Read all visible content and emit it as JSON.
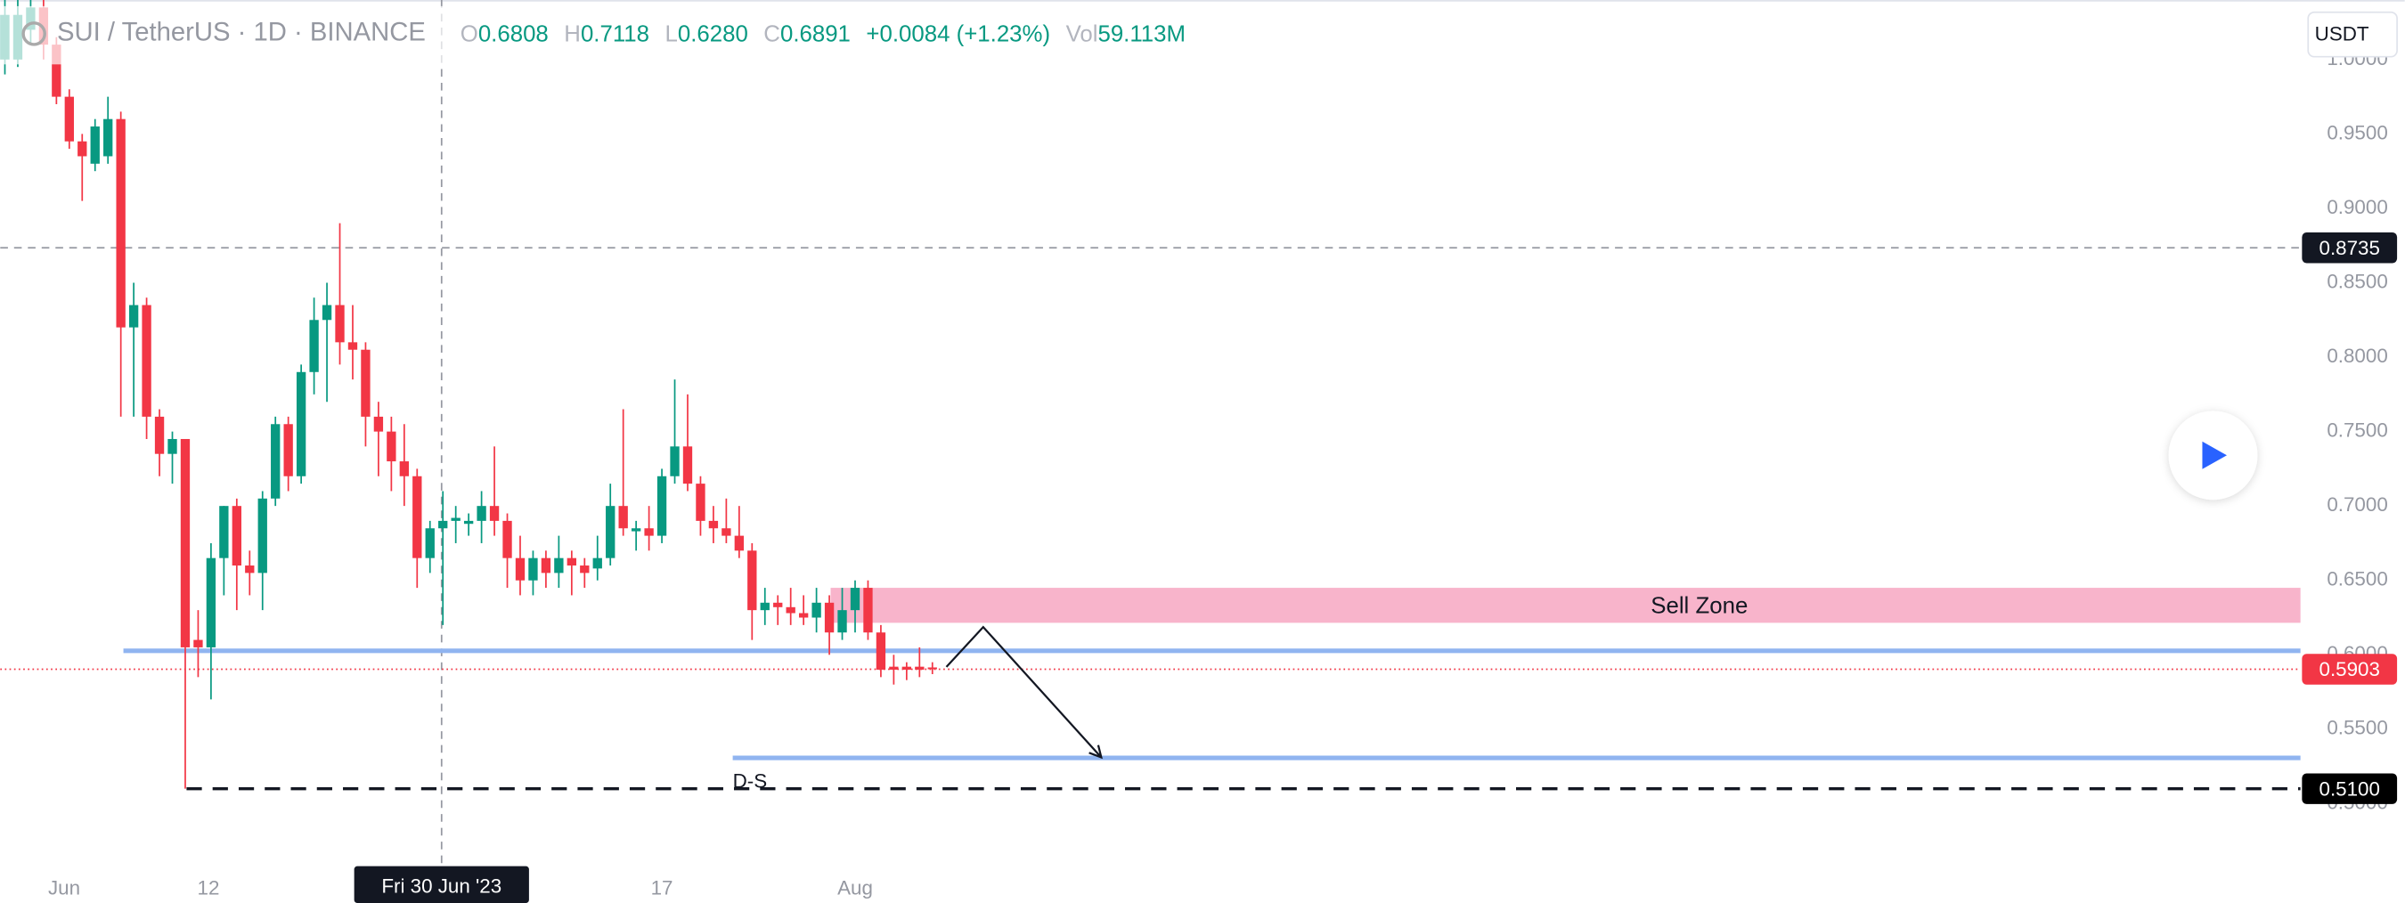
{
  "chart_data": {
    "type": "candlestick",
    "title": "SUI / TetherUS · 1D · BINANCE",
    "ohlc_legend": [
      {
        "label": "O",
        "value": "0.6808"
      },
      {
        "label": "H",
        "value": "0.7118"
      },
      {
        "label": "L",
        "value": "0.6280"
      },
      {
        "label": "C",
        "value": "0.6891"
      }
    ],
    "change": "+0.0084 (+1.23%)",
    "volume_label": "Vol",
    "volume": "59.113M",
    "currency": "USDT",
    "up_color": "#089981",
    "down_color": "#f23645",
    "open": [
      1.0,
      1.0,
      1.02,
      1.035,
      1.01,
      0.975,
      0.945,
      0.93,
      0.935,
      0.96,
      0.82,
      0.835,
      0.76,
      0.735,
      0.745,
      0.61,
      0.605,
      0.665,
      0.7,
      0.66,
      0.655,
      0.705,
      0.755,
      0.72,
      0.79,
      0.825,
      0.835,
      0.81,
      0.805,
      0.76,
      0.75,
      0.73,
      0.72,
      0.665,
      0.685,
      0.69,
      0.688,
      0.69,
      0.7,
      0.69,
      0.665,
      0.65,
      0.665,
      0.655,
      0.665,
      0.66,
      0.658,
      0.665,
      0.7,
      0.683,
      0.685,
      0.68,
      0.72,
      0.74,
      0.715,
      0.69,
      0.685,
      0.68,
      0.67,
      0.63,
      0.635,
      0.632,
      0.628,
      0.625,
      0.635,
      0.615,
      0.63,
      0.645,
      0.615,
      0.592,
      0.592,
      0.592,
      0.5915
    ],
    "high": [
      1.04,
      1.04,
      1.04,
      1.04,
      1.015,
      0.98,
      0.95,
      0.96,
      0.975,
      0.965,
      0.85,
      0.84,
      0.765,
      0.75,
      0.745,
      0.63,
      0.675,
      0.7,
      0.705,
      0.67,
      0.71,
      0.76,
      0.76,
      0.795,
      0.84,
      0.85,
      0.89,
      0.835,
      0.81,
      0.77,
      0.76,
      0.755,
      0.725,
      0.69,
      0.71,
      0.7,
      0.695,
      0.71,
      0.74,
      0.695,
      0.68,
      0.67,
      0.67,
      0.68,
      0.67,
      0.665,
      0.68,
      0.715,
      0.765,
      0.69,
      0.7,
      0.725,
      0.785,
      0.775,
      0.72,
      0.7,
      0.705,
      0.7,
      0.675,
      0.645,
      0.64,
      0.645,
      0.64,
      0.645,
      0.64,
      0.645,
      0.65,
      0.65,
      0.62,
      0.6,
      0.595,
      0.605,
      0.595
    ],
    "low": [
      0.99,
      0.995,
      1.01,
      1.0,
      0.97,
      0.94,
      0.905,
      0.925,
      0.93,
      0.76,
      0.76,
      0.745,
      0.72,
      0.715,
      0.51,
      0.585,
      0.57,
      0.64,
      0.63,
      0.64,
      0.63,
      0.7,
      0.71,
      0.715,
      0.775,
      0.77,
      0.795,
      0.785,
      0.74,
      0.72,
      0.71,
      0.7,
      0.645,
      0.655,
      0.62,
      0.675,
      0.68,
      0.675,
      0.68,
      0.645,
      0.64,
      0.64,
      0.645,
      0.645,
      0.64,
      0.645,
      0.65,
      0.66,
      0.68,
      0.67,
      0.67,
      0.675,
      0.715,
      0.71,
      0.68,
      0.675,
      0.675,
      0.665,
      0.61,
      0.62,
      0.62,
      0.62,
      0.62,
      0.615,
      0.6,
      0.61,
      0.615,
      0.61,
      0.585,
      0.58,
      0.583,
      0.585,
      0.587
    ],
    "close": [
      1.03,
      1.03,
      1.035,
      1.01,
      0.975,
      0.945,
      0.935,
      0.955,
      0.96,
      0.82,
      0.835,
      0.76,
      0.735,
      0.745,
      0.605,
      0.605,
      0.665,
      0.7,
      0.66,
      0.655,
      0.705,
      0.755,
      0.72,
      0.79,
      0.825,
      0.835,
      0.81,
      0.805,
      0.76,
      0.75,
      0.73,
      0.72,
      0.665,
      0.685,
      0.69,
      0.692,
      0.69,
      0.7,
      0.69,
      0.665,
      0.65,
      0.665,
      0.655,
      0.665,
      0.66,
      0.655,
      0.665,
      0.7,
      0.685,
      0.685,
      0.68,
      0.72,
      0.74,
      0.715,
      0.69,
      0.685,
      0.68,
      0.67,
      0.63,
      0.635,
      0.632,
      0.628,
      0.625,
      0.635,
      0.615,
      0.63,
      0.645,
      0.615,
      0.59,
      0.59,
      0.59,
      0.59,
      0.5903
    ],
    "xlim": [
      -0.36,
      178.2
    ],
    "ylim": [
      0.46,
      1.04
    ],
    "xticks": [
      {
        "value": 4.6,
        "label": "Jun"
      },
      {
        "value": 15.8,
        "label": "12"
      },
      {
        "value": 51,
        "label": "17"
      },
      {
        "value": 66,
        "label": "Aug"
      }
    ],
    "yticks": [
      {
        "value": 0.5,
        "label": "0.5000"
      },
      {
        "value": 0.55,
        "label": "0.5500"
      },
      {
        "value": 0.6,
        "label": "0.6000"
      },
      {
        "value": 0.65,
        "label": "0.6500"
      },
      {
        "value": 0.7,
        "label": "0.7000"
      },
      {
        "value": 0.75,
        "label": "0.7500"
      },
      {
        "value": 0.8,
        "label": "0.8000"
      },
      {
        "value": 0.85,
        "label": "0.8500"
      },
      {
        "value": 0.9,
        "label": "0.9000"
      },
      {
        "value": 0.95,
        "label": "0.9500"
      },
      {
        "value": 1.0,
        "label": "1.0000"
      }
    ],
    "crosshair": {
      "x": 33.9,
      "x_label": "Fri 30 Jun '23",
      "y": 0.8735
    },
    "last_price": 0.5903,
    "sell_zone": {
      "label": "Sell Zone",
      "top": 0.645,
      "bottom": 0.6215
    },
    "support_levels": [
      0.6027,
      0.5307
    ],
    "low_level": {
      "value": 0.51,
      "label": "0.5100"
    },
    "low_level_note": "D-S"
  }
}
